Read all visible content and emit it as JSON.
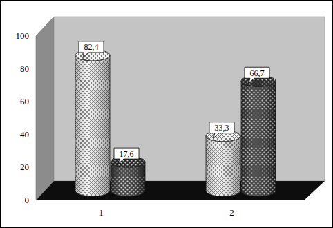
{
  "chart_data": {
    "type": "bar",
    "categories": [
      "1",
      "2"
    ],
    "series": [
      {
        "color": "#f2f2f2",
        "values": [
          82.4,
          33.3
        ],
        "value_labels": [
          "82,4",
          "33,3"
        ]
      },
      {
        "color": "#2b2b2b",
        "values": [
          17.6,
          66.7
        ],
        "value_labels": [
          "17,6",
          "66,7"
        ]
      }
    ],
    "ylim": [
      0,
      100
    ],
    "yticks": [
      0,
      20,
      40,
      60,
      80,
      100
    ],
    "grid": false,
    "data_labels": true
  }
}
